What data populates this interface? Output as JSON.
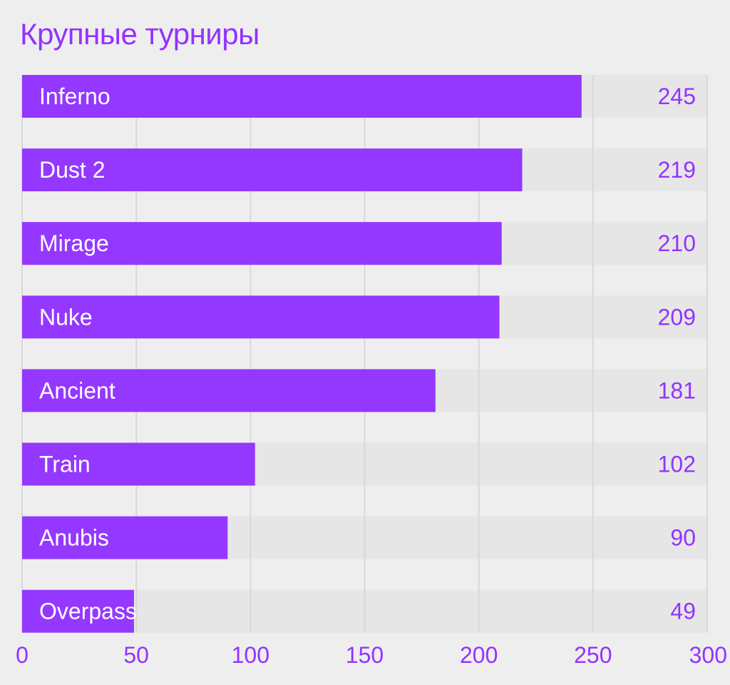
{
  "title": "Крупные турниры",
  "colors": {
    "bar": "#9438ff",
    "text": "#9333ff",
    "track": "#e7e6e7",
    "grid": "#d9d8d9",
    "background": "#efeeef"
  },
  "chart_data": {
    "type": "bar",
    "orientation": "horizontal",
    "title": "Крупные турниры",
    "categories": [
      "Inferno",
      "Dust 2",
      "Mirage",
      "Nuke",
      "Ancient",
      "Train",
      "Anubis",
      "Overpass"
    ],
    "values": [
      245,
      219,
      210,
      209,
      181,
      102,
      90,
      49
    ],
    "xlim": [
      0,
      300
    ],
    "xticks": [
      0,
      50,
      100,
      150,
      200,
      250,
      300
    ],
    "grid": true,
    "xlabel": "",
    "ylabel": ""
  }
}
